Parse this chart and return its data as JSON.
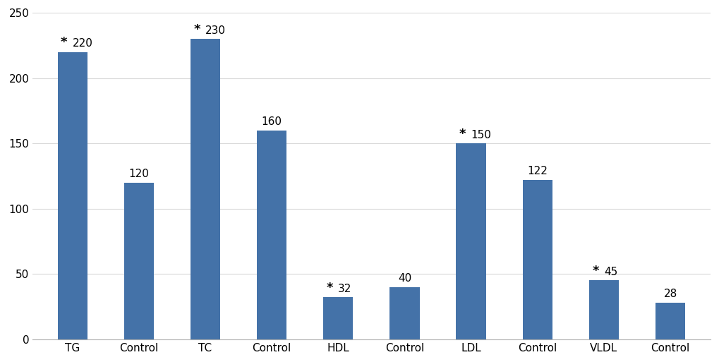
{
  "categories": [
    "TG",
    "Control",
    "TC",
    "Control",
    "HDL",
    "Control",
    "LDL",
    "Control",
    "VLDL",
    "Control"
  ],
  "values": [
    220,
    120,
    230,
    160,
    32,
    40,
    150,
    122,
    45,
    28
  ],
  "bar_color": "#4472a8",
  "has_star": [
    true,
    false,
    true,
    false,
    true,
    false,
    true,
    false,
    true,
    false
  ],
  "ylim": [
    0,
    250
  ],
  "yticks": [
    0,
    50,
    100,
    150,
    200,
    250
  ],
  "background_color": "#ffffff",
  "grid_color": "#d9d9d9",
  "label_fontsize": 11,
  "tick_fontsize": 11,
  "value_label_fontsize": 11,
  "star_fontsize": 13,
  "bar_width": 0.45
}
